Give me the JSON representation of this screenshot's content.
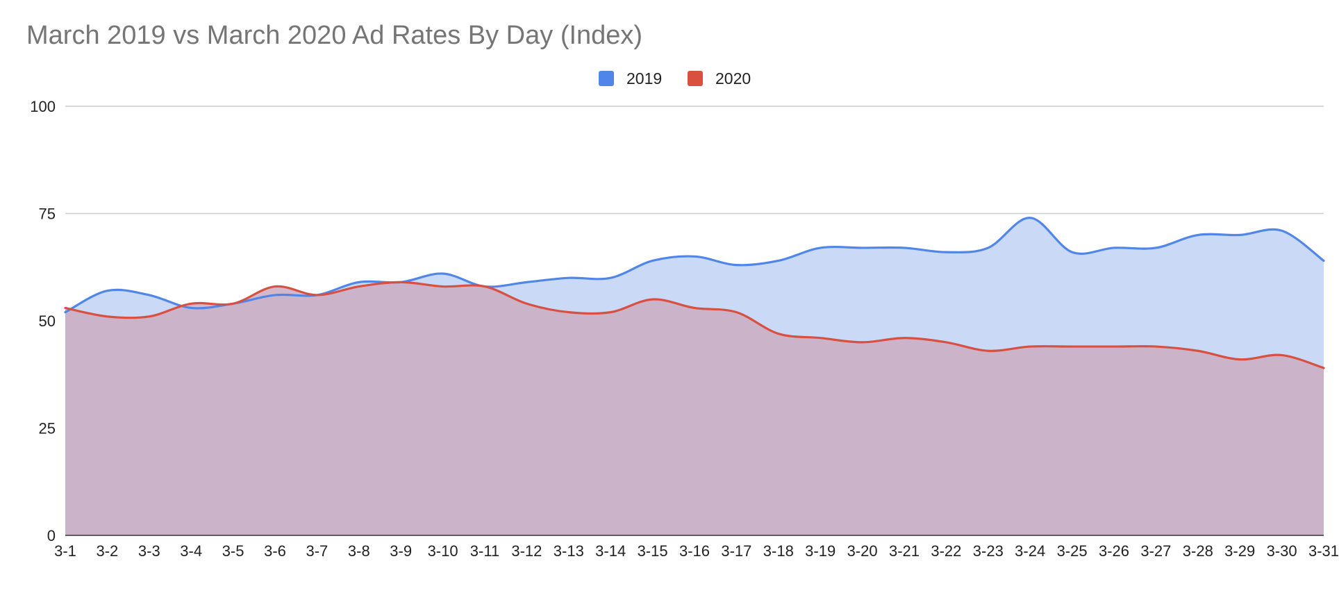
{
  "chart_data": {
    "type": "area",
    "title": "March 2019 vs March 2020 Ad Rates By Day (Index)",
    "xlabel": "",
    "ylabel": "",
    "ylim": [
      0,
      100
    ],
    "yticks": [
      "0",
      "25",
      "50",
      "75",
      "100"
    ],
    "grid": true,
    "legend_position": "top-center",
    "categories": [
      "3-1",
      "3-2",
      "3-3",
      "3-4",
      "3-5",
      "3-6",
      "3-7",
      "3-8",
      "3-9",
      "3-10",
      "3-11",
      "3-12",
      "3-13",
      "3-14",
      "3-15",
      "3-16",
      "3-17",
      "3-18",
      "3-19",
      "3-20",
      "3-21",
      "3-22",
      "3-23",
      "3-24",
      "3-25",
      "3-26",
      "3-27",
      "3-28",
      "3-29",
      "3-30",
      "3-31"
    ],
    "series": [
      {
        "name": "2019",
        "color": "#4f86e8",
        "fill_color": "#c9d9f6",
        "values": [
          52,
          57,
          56,
          53,
          54,
          56,
          56,
          59,
          59,
          61,
          58,
          59,
          60,
          60,
          64,
          65,
          63,
          64,
          67,
          67,
          67,
          66,
          67,
          74,
          66,
          67,
          67,
          70,
          70,
          71,
          64
        ]
      },
      {
        "name": "2020",
        "color": "#d85040",
        "fill_color": "#cbacc2",
        "values": [
          53,
          51,
          51,
          54,
          54,
          58,
          56,
          58,
          59,
          58,
          58,
          54,
          52,
          52,
          55,
          53,
          52,
          47,
          46,
          45,
          46,
          45,
          43,
          44,
          44,
          44,
          44,
          43,
          41,
          42,
          39
        ]
      }
    ]
  }
}
